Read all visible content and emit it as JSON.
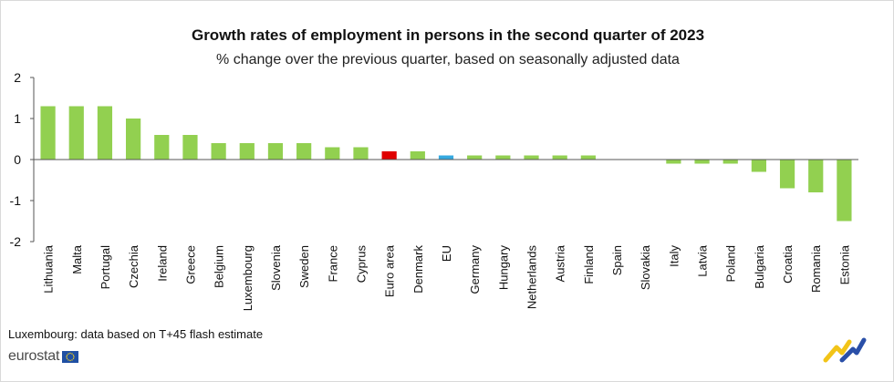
{
  "chart_data": {
    "type": "bar",
    "title": "Growth rates of employment in persons in the second quarter of 2023",
    "subtitle": "% change over the previous quarter, based on seasonally adjusted data",
    "xlabel": "",
    "ylabel": "",
    "ylim": [
      -2,
      2
    ],
    "yticks": [
      "2",
      "1",
      "0",
      "-1",
      "-2"
    ],
    "ytick_values": [
      2,
      1,
      0,
      -1,
      -2
    ],
    "grid": false,
    "categories": [
      "Lithuania",
      "Malta",
      "Portugal",
      "Czechia",
      "Ireland",
      "Greece",
      "Belgium",
      "Luxembourg",
      "Slovenia",
      "Sweden",
      "France",
      "Cyprus",
      "Euro area",
      "Denmark",
      "EU",
      "Germany",
      "Hungary",
      "Netherlands",
      "Austria",
      "Finland",
      "Spain",
      "Slovakia",
      "Italy",
      "Latvia",
      "Poland",
      "Bulgaria",
      "Croatia",
      "Romania",
      "Estonia"
    ],
    "values": [
      1.3,
      1.3,
      1.3,
      1.0,
      0.6,
      0.6,
      0.4,
      0.4,
      0.4,
      0.4,
      0.3,
      0.3,
      0.2,
      0.2,
      0.1,
      0.1,
      0.1,
      0.1,
      0.1,
      0.1,
      0.0,
      0.0,
      -0.1,
      -0.1,
      -0.1,
      -0.3,
      -0.7,
      -0.8,
      -1.5
    ],
    "bar_colors": {
      "default": "#92d050",
      "Euro area": "#e00000",
      "EU": "#35a9e0"
    }
  },
  "footnote": "Luxembourg: data based on T+45 flash estimate",
  "logo": {
    "text": "eurostat",
    "flag_icon": "eu-flag-icon"
  },
  "colors": {
    "axis": "#555555",
    "text": "#111111"
  }
}
